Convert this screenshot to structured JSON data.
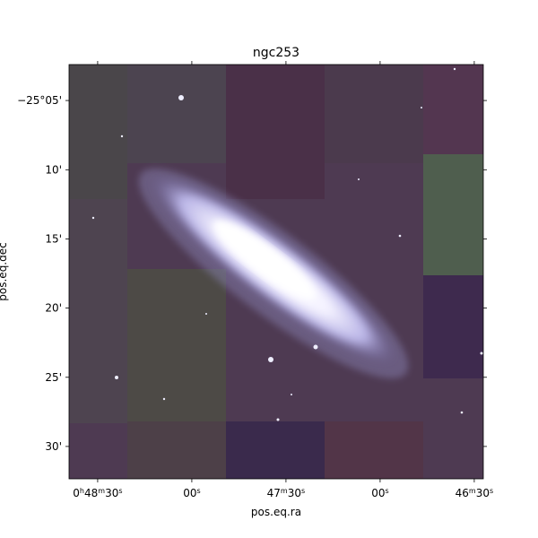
{
  "chart_data": {
    "type": "image",
    "title": "ngc253",
    "xlabel": "pos.eq.ra",
    "ylabel": "pos.eq.dec",
    "xlim": [
      12.163,
      11.613
    ],
    "ylim": [
      -25.539,
      -25.04
    ],
    "xticks": [
      {
        "value": 12.125,
        "label": "0h48m30s"
      },
      {
        "value": 12.0,
        "label": "00s"
      },
      {
        "value": 11.875,
        "label": "47m30s"
      },
      {
        "value": 11.75,
        "label": "00s"
      },
      {
        "value": 11.625,
        "label": "46m30s"
      }
    ],
    "yticks": [
      {
        "value": -25.0833,
        "label": "−25°05'"
      },
      {
        "value": -25.1667,
        "label": "10'"
      },
      {
        "value": -25.25,
        "label": "15'"
      },
      {
        "value": -25.3333,
        "label": "20'"
      },
      {
        "value": -25.4167,
        "label": "25'"
      },
      {
        "value": -25.5,
        "label": "30'"
      }
    ]
  }
}
